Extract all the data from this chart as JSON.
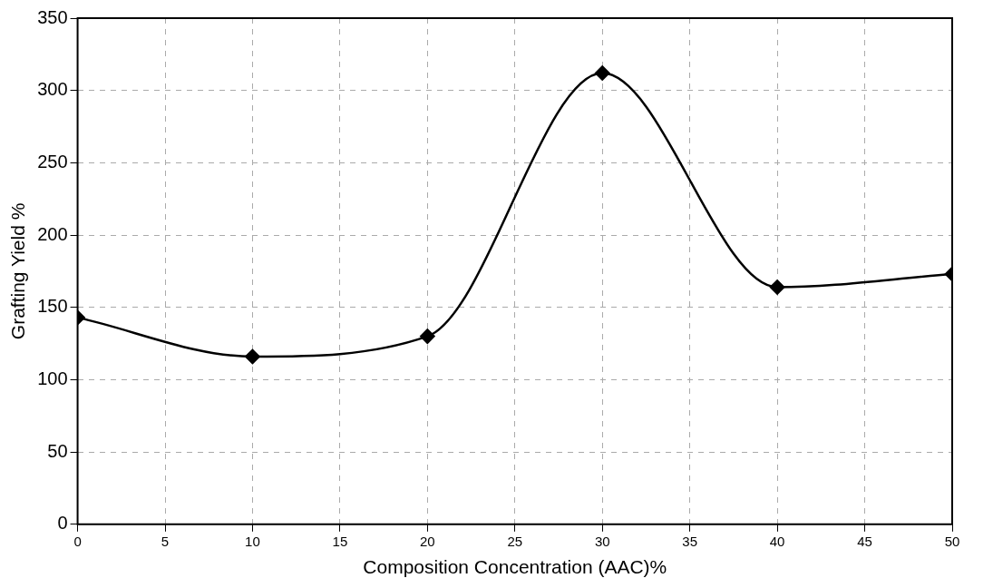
{
  "chart_data": {
    "type": "line",
    "xlabel": "Composition Concentration (AAC)%",
    "ylabel": "Grafting Yield %",
    "x": [
      0,
      10,
      20,
      30,
      40,
      50
    ],
    "series": [
      {
        "color": "#000000",
        "values": [
          143,
          116,
          130,
          312,
          164,
          173
        ]
      }
    ],
    "xlim": [
      0,
      50
    ],
    "xticks": [
      0,
      5,
      10,
      15,
      20,
      25,
      30,
      35,
      40,
      45,
      50
    ],
    "ylim": [
      0,
      350
    ],
    "yticks": [
      0,
      50,
      100,
      150,
      200,
      250,
      300,
      350
    ],
    "grid": true,
    "legend": false,
    "marker": "diamond",
    "line_style": "solid"
  }
}
